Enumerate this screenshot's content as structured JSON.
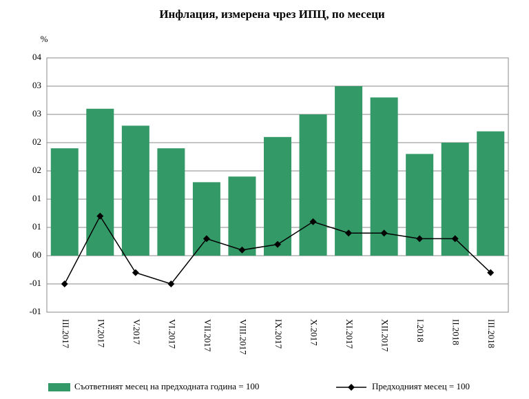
{
  "chart_data": {
    "type": "bar",
    "title": "Инфлация, измерена чрез ИПЦ, по месеци",
    "y_label": "%",
    "categories": [
      "III.2017",
      "IV.2017",
      "V.2017",
      "VI.2017",
      "VII.2017",
      "VIII.2017",
      "IX.2017",
      "X.2017",
      "XI.2017",
      "XII.2017",
      "I.2018",
      "II.2018",
      "III.2018"
    ],
    "series": [
      {
        "name": "Съответният месец на предходната година = 100",
        "type": "bar",
        "color": "#339966",
        "values": [
          1.9,
          2.6,
          2.3,
          1.9,
          1.3,
          1.4,
          2.1,
          2.5,
          3.0,
          2.8,
          1.8,
          2.0,
          2.2
        ]
      },
      {
        "name": "Предходният месец = 100",
        "type": "line",
        "color": "#000000",
        "values": [
          -0.5,
          0.7,
          -0.3,
          -0.5,
          0.3,
          0.1,
          0.2,
          0.6,
          0.4,
          0.4,
          0.3,
          0.3,
          -0.3
        ]
      }
    ],
    "ylim": [
      -1,
      3.5
    ],
    "yticks": [
      {
        "value": -1,
        "label": "-01"
      },
      {
        "value": -0.5,
        "label": "-01"
      },
      {
        "value": 0,
        "label": "00"
      },
      {
        "value": 0.5,
        "label": "01"
      },
      {
        "value": 1,
        "label": "01"
      },
      {
        "value": 1.5,
        "label": "02"
      },
      {
        "value": 2,
        "label": "02"
      },
      {
        "value": 2.5,
        "label": "03"
      },
      {
        "value": 3,
        "label": "03"
      },
      {
        "value": 3.5,
        "label": "04"
      }
    ],
    "grid": true,
    "legend": "bottom"
  }
}
